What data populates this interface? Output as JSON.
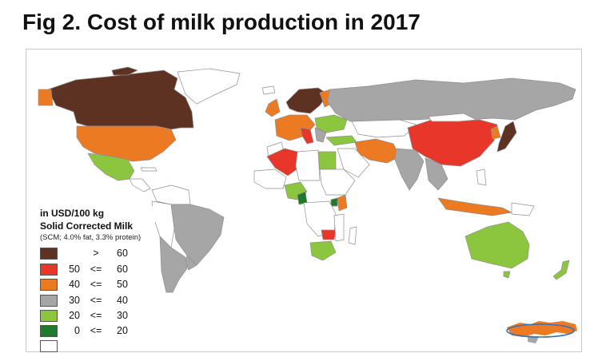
{
  "title": "Fig 2. Cost of milk production in 2017",
  "legend": {
    "unit": "in USD/100 kg",
    "type": "Solid Corrected Milk",
    "note": "(SCM; 4.0% fat, 3.3% protein)",
    "items": [
      {
        "lo": "",
        "op": ">",
        "hi": "60",
        "color": "#5e3223"
      },
      {
        "lo": "50",
        "op": "<=",
        "hi": "60",
        "color": "#e8372a"
      },
      {
        "lo": "40",
        "op": "<=",
        "hi": "50",
        "color": "#ec7a23"
      },
      {
        "lo": "30",
        "op": "<=",
        "hi": "40",
        "color": "#a6a6a6"
      },
      {
        "lo": "20",
        "op": "<=",
        "hi": "30",
        "color": "#8cc63f"
      },
      {
        "lo": "0",
        "op": "<=",
        "hi": "20",
        "color": "#1f7a2e"
      },
      {
        "lo": "",
        "op": "",
        "hi": "",
        "color": "#ffffff"
      }
    ]
  },
  "colors": {
    "above60": "#5e3223",
    "c50_60": "#e8372a",
    "c40_50": "#ec7a23",
    "c30_40": "#a6a6a6",
    "c20_30": "#8cc63f",
    "c0_20": "#1f7a2e",
    "nodata": "#ffffff",
    "border": "#9a9a9a"
  }
}
